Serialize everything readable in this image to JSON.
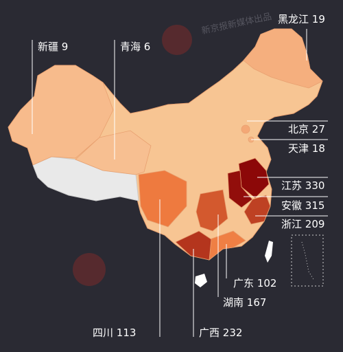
{
  "watermark": "新京报新媒体出品",
  "labels": [
    {
      "name": "新疆",
      "value": 9
    },
    {
      "name": "青海",
      "value": 6
    },
    {
      "name": "黑龙江",
      "value": 19
    },
    {
      "name": "北京",
      "value": 27
    },
    {
      "name": "天津",
      "value": 18
    },
    {
      "name": "江苏",
      "value": 330
    },
    {
      "name": "安徽",
      "value": 315
    },
    {
      "name": "浙江",
      "value": 209
    },
    {
      "name": "广东",
      "value": 102
    },
    {
      "name": "湖南",
      "value": 167
    },
    {
      "name": "四川",
      "value": 113
    },
    {
      "name": "广西",
      "value": 232
    }
  ]
}
